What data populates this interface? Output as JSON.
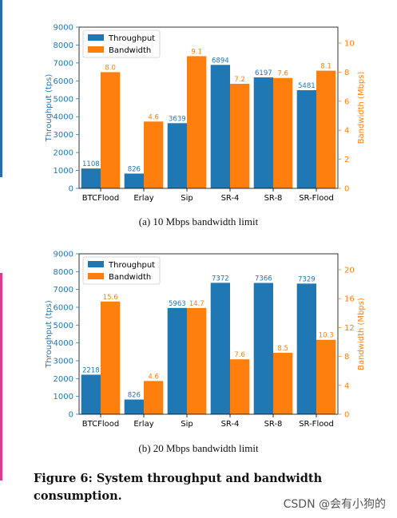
{
  "chart_data": [
    {
      "type": "bar",
      "categories": [
        "BTCFlood",
        "Erlay",
        "Sip",
        "SR-4",
        "SR-8",
        "SR-Flood"
      ],
      "series": [
        {
          "name": "Throughput",
          "values": [
            1108,
            826,
            3639,
            6894,
            6197,
            5481
          ],
          "labels": [
            "1108",
            "826",
            "3639",
            "6894",
            "6197",
            "5481"
          ],
          "axis": "left",
          "color": "#1f77b4"
        },
        {
          "name": "Bandwidth",
          "values": [
            8.0,
            4.6,
            9.1,
            7.2,
            7.6,
            8.1
          ],
          "labels": [
            "8.0",
            "4.6",
            "9.1",
            "7.2",
            "7.6",
            "8.1"
          ],
          "axis": "right",
          "color": "#ff7f0e"
        }
      ],
      "ylabel": "Throughput (tps)",
      "ylabel_right": "Bandwidth (Mbps)",
      "ylim": [
        0,
        9000
      ],
      "ylim_right": [
        0,
        11.1
      ],
      "yticks": [
        0,
        1000,
        2000,
        3000,
        4000,
        5000,
        6000,
        7000,
        8000,
        9000
      ],
      "yticks_right": [
        0,
        2,
        4,
        6,
        8,
        10
      ],
      "legend_position": "top-left",
      "grid": false
    },
    {
      "type": "bar",
      "categories": [
        "BTCFlood",
        "Erlay",
        "Sip",
        "SR-4",
        "SR-8",
        "SR-Flood"
      ],
      "series": [
        {
          "name": "Throughput",
          "values": [
            2218,
            826,
            5963,
            7372,
            7366,
            7329
          ],
          "labels": [
            "2218",
            "826",
            "5963",
            "7372",
            "7366",
            "7329"
          ],
          "axis": "left",
          "color": "#1f77b4"
        },
        {
          "name": "Bandwidth",
          "values": [
            15.6,
            4.6,
            14.7,
            7.6,
            8.5,
            10.3
          ],
          "labels": [
            "15.6",
            "4.6",
            "14.7",
            "7.6",
            "8.5",
            "10.3"
          ],
          "axis": "right",
          "color": "#ff7f0e"
        }
      ],
      "ylabel": "Throughput (tps)",
      "ylabel_right": "Bandwidth (Mbps)",
      "ylim": [
        0,
        9000
      ],
      "ylim_right": [
        0,
        22.2
      ],
      "yticks": [
        0,
        1000,
        2000,
        3000,
        4000,
        5000,
        6000,
        7000,
        8000,
        9000
      ],
      "yticks_right": [
        0,
        4,
        8,
        12,
        16,
        20
      ],
      "legend_position": "top-left",
      "grid": false
    }
  ],
  "captions": {
    "sub_a": "(a)  10 Mbps bandwidth limit",
    "sub_b": "(b)  20 Mbps bandwidth limit",
    "figure": "Figure 6: System throughput and bandwidth consumption."
  },
  "watermark": "CSDN @会有小狗的",
  "colors": {
    "throughput": "#1f77b4",
    "bandwidth": "#ff7f0e",
    "left_axis_text": "#1f77b4",
    "right_axis_text": "#ff7f0e"
  }
}
